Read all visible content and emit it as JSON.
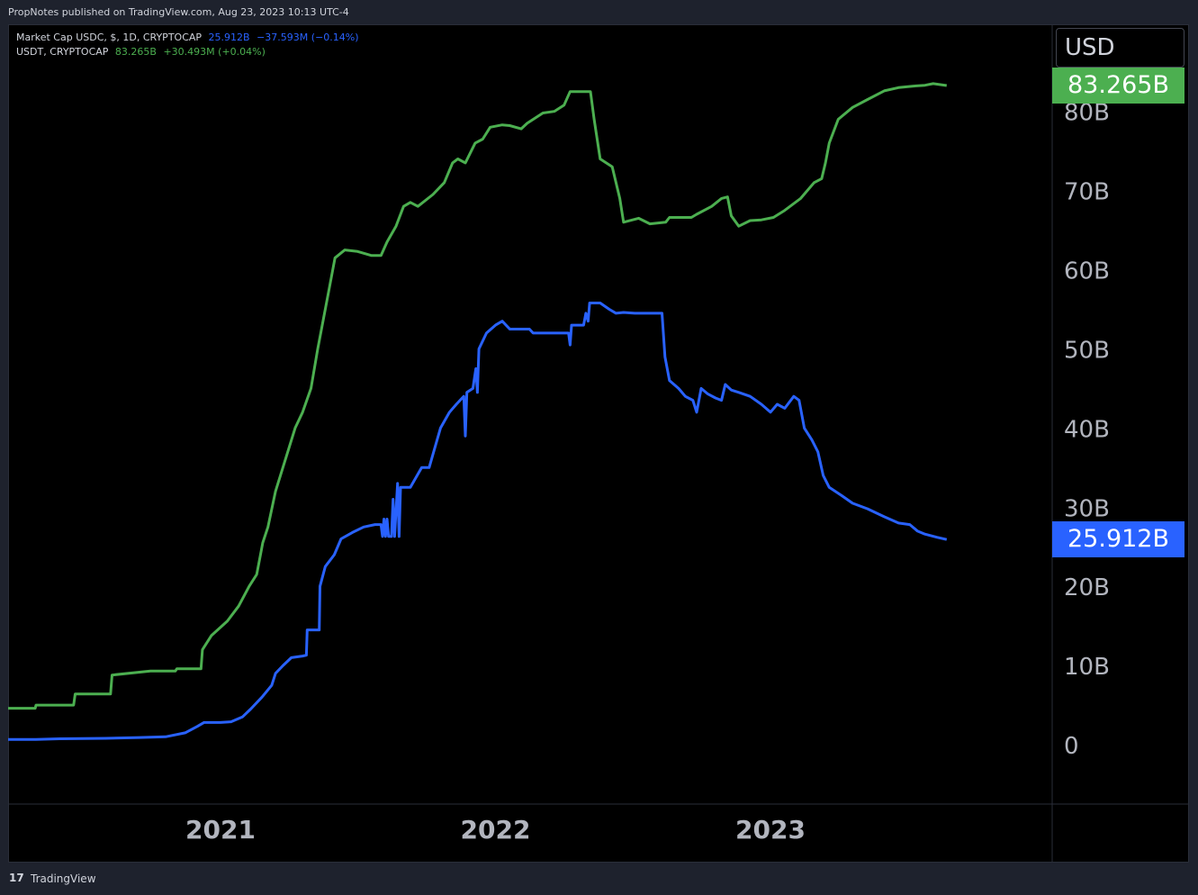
{
  "publisher_line": "PropNotes published on TradingView.com, Aug 23, 2023 10:13 UTC-4",
  "legend": {
    "usdc": {
      "label": "Market Cap USDC, $, 1D, CRYPTOCAP",
      "value": "25.912B",
      "change": "−37.593M (−0.14%)"
    },
    "usdt": {
      "label": "USDT, CRYPTOCAP",
      "value": "83.265B",
      "change": "+30.493M (+0.04%)"
    }
  },
  "currency": "USD",
  "price_tags": {
    "usdt": "83.265B",
    "usdc": "25.912B"
  },
  "branding": {
    "logo_glyph": "17",
    "name": "TradingView"
  },
  "colors": {
    "usdt": "#4caf50",
    "usdc": "#2962ff",
    "background": "#000000",
    "axis_text": "#b2b5be"
  },
  "chart_data": {
    "type": "line",
    "title": "",
    "xlabel": "",
    "ylabel": "",
    "x_tick_labels": [
      "2021",
      "2022",
      "2023"
    ],
    "y_tick_labels": [
      "0",
      "10B",
      "20B",
      "30B",
      "40B",
      "50B",
      "60B",
      "70B",
      "80B"
    ],
    "y_ticks": [
      0,
      10,
      20,
      30,
      40,
      50,
      60,
      70,
      80
    ],
    "ylim": [
      -7.5,
      91
    ],
    "xlim": [
      "2020-03-25",
      "2024-01-10"
    ],
    "grid": false,
    "series": [
      {
        "name": "USDT",
        "color": "#4caf50",
        "points": [
          [
            "2020-03-25",
            4.6
          ],
          [
            "2020-04-30",
            4.6
          ],
          [
            "2020-05-01",
            5.0
          ],
          [
            "2020-06-20",
            5.0
          ],
          [
            "2020-06-22",
            6.4
          ],
          [
            "2020-08-08",
            6.4
          ],
          [
            "2020-08-10",
            8.8
          ],
          [
            "2020-09-30",
            9.3
          ],
          [
            "2020-11-02",
            9.3
          ],
          [
            "2020-11-04",
            9.6
          ],
          [
            "2020-12-06",
            9.6
          ],
          [
            "2020-12-08",
            12.0
          ],
          [
            "2020-12-20",
            13.8
          ],
          [
            "2021-01-10",
            15.6
          ],
          [
            "2021-01-25",
            17.5
          ],
          [
            "2021-02-08",
            20.0
          ],
          [
            "2021-02-18",
            21.5
          ],
          [
            "2021-02-23",
            24.0
          ],
          [
            "2021-02-26",
            25.5
          ],
          [
            "2021-03-05",
            27.5
          ],
          [
            "2021-03-15",
            32.0
          ],
          [
            "2021-03-28",
            36.0
          ],
          [
            "2021-04-10",
            40.0
          ],
          [
            "2021-04-20",
            42.0
          ],
          [
            "2021-05-01",
            45.0
          ],
          [
            "2021-05-10",
            50.0
          ],
          [
            "2021-05-18",
            54.0
          ],
          [
            "2021-05-26",
            58.0
          ],
          [
            "2021-06-02",
            61.5
          ],
          [
            "2021-06-15",
            62.5
          ],
          [
            "2021-07-02",
            62.3
          ],
          [
            "2021-07-20",
            61.8
          ],
          [
            "2021-08-02",
            61.8
          ],
          [
            "2021-08-10",
            63.5
          ],
          [
            "2021-08-22",
            65.5
          ],
          [
            "2021-09-01",
            68.0
          ],
          [
            "2021-09-10",
            68.5
          ],
          [
            "2021-09-20",
            68.0
          ],
          [
            "2021-10-10",
            69.5
          ],
          [
            "2021-10-25",
            71.0
          ],
          [
            "2021-11-05",
            73.5
          ],
          [
            "2021-11-12",
            74.0
          ],
          [
            "2021-11-22",
            73.5
          ],
          [
            "2021-12-05",
            76.0
          ],
          [
            "2021-12-15",
            76.5
          ],
          [
            "2021-12-25",
            78.0
          ],
          [
            "2022-01-10",
            78.3
          ],
          [
            "2022-01-20",
            78.2
          ],
          [
            "2022-02-04",
            77.8
          ],
          [
            "2022-02-12",
            78.5
          ],
          [
            "2022-03-05",
            79.8
          ],
          [
            "2022-03-20",
            80.0
          ],
          [
            "2022-04-02",
            80.8
          ],
          [
            "2022-04-10",
            82.5
          ],
          [
            "2022-05-07",
            82.5
          ],
          [
            "2022-05-12",
            79.0
          ],
          [
            "2022-05-20",
            74.0
          ],
          [
            "2022-06-05",
            73.0
          ],
          [
            "2022-06-15",
            69.0
          ],
          [
            "2022-06-20",
            66.0
          ],
          [
            "2022-07-10",
            66.5
          ],
          [
            "2022-07-25",
            65.8
          ],
          [
            "2022-08-15",
            66.0
          ],
          [
            "2022-08-20",
            66.6
          ],
          [
            "2022-09-18",
            66.6
          ],
          [
            "2022-09-25",
            67.0
          ],
          [
            "2022-10-15",
            68.0
          ],
          [
            "2022-10-28",
            69.0
          ],
          [
            "2022-11-05",
            69.2
          ],
          [
            "2022-11-10",
            66.8
          ],
          [
            "2022-11-20",
            65.5
          ],
          [
            "2022-12-05",
            66.2
          ],
          [
            "2022-12-20",
            66.3
          ],
          [
            "2023-01-05",
            66.6
          ],
          [
            "2023-01-20",
            67.5
          ],
          [
            "2023-02-10",
            69.0
          ],
          [
            "2023-02-28",
            71.0
          ],
          [
            "2023-03-10",
            71.5
          ],
          [
            "2023-03-15",
            73.5
          ],
          [
            "2023-03-20",
            76.0
          ],
          [
            "2023-04-01",
            79.0
          ],
          [
            "2023-04-20",
            80.5
          ],
          [
            "2023-05-10",
            81.5
          ],
          [
            "2023-06-01",
            82.6
          ],
          [
            "2023-06-20",
            83.0
          ],
          [
            "2023-07-10",
            83.2
          ],
          [
            "2023-07-25",
            83.3
          ],
          [
            "2023-08-05",
            83.5
          ],
          [
            "2023-08-23",
            83.265
          ]
        ]
      },
      {
        "name": "USDC",
        "color": "#2962ff",
        "points": [
          [
            "2020-03-25",
            0.65
          ],
          [
            "2020-05-01",
            0.65
          ],
          [
            "2020-06-01",
            0.75
          ],
          [
            "2020-08-01",
            0.8
          ],
          [
            "2020-09-15",
            0.9
          ],
          [
            "2020-10-20",
            1.0
          ],
          [
            "2020-11-15",
            1.5
          ],
          [
            "2020-12-01",
            2.3
          ],
          [
            "2020-12-10",
            2.8
          ],
          [
            "2021-01-01",
            2.8
          ],
          [
            "2021-01-15",
            2.9
          ],
          [
            "2021-01-30",
            3.5
          ],
          [
            "2021-02-10",
            4.5
          ],
          [
            "2021-02-25",
            6.0
          ],
          [
            "2021-03-10",
            7.5
          ],
          [
            "2021-03-15",
            9.0
          ],
          [
            "2021-03-25",
            10.0
          ],
          [
            "2021-04-05",
            11.0
          ],
          [
            "2021-04-20",
            11.2
          ],
          [
            "2021-04-25",
            11.3
          ],
          [
            "2021-04-26",
            14.5
          ],
          [
            "2021-05-12",
            14.5
          ],
          [
            "2021-05-13",
            20.0
          ],
          [
            "2021-05-20",
            22.5
          ],
          [
            "2021-06-01",
            24.0
          ],
          [
            "2021-06-10",
            26.0
          ],
          [
            "2021-06-25",
            26.8
          ],
          [
            "2021-07-10",
            27.5
          ],
          [
            "2021-07-25",
            27.8
          ],
          [
            "2021-08-02",
            27.8
          ],
          [
            "2021-08-04",
            26.3
          ],
          [
            "2021-08-06",
            28.5
          ],
          [
            "2021-08-08",
            26.3
          ],
          [
            "2021-08-10",
            28.5
          ],
          [
            "2021-08-12",
            26.3
          ],
          [
            "2021-08-16",
            26.3
          ],
          [
            "2021-08-18",
            31.0
          ],
          [
            "2021-08-20",
            26.3
          ],
          [
            "2021-08-24",
            33.0
          ],
          [
            "2021-08-26",
            26.3
          ],
          [
            "2021-08-28",
            32.5
          ],
          [
            "2021-09-10",
            32.5
          ],
          [
            "2021-09-25",
            35.0
          ],
          [
            "2021-10-05",
            35.0
          ],
          [
            "2021-10-20",
            40.0
          ],
          [
            "2021-11-01",
            42.0
          ],
          [
            "2021-11-10",
            43.0
          ],
          [
            "2021-11-20",
            44.0
          ],
          [
            "2021-11-22",
            39.0
          ],
          [
            "2021-11-24",
            44.5
          ],
          [
            "2021-12-02",
            45.0
          ],
          [
            "2021-12-06",
            47.5
          ],
          [
            "2021-12-08",
            44.5
          ],
          [
            "2021-12-10",
            50.0
          ],
          [
            "2021-12-20",
            52.0
          ],
          [
            "2022-01-01",
            53.0
          ],
          [
            "2022-01-10",
            53.5
          ],
          [
            "2022-01-20",
            52.5
          ],
          [
            "2022-02-15",
            52.5
          ],
          [
            "2022-02-20",
            52.0
          ],
          [
            "2022-03-15",
            52.0
          ],
          [
            "2022-03-25",
            52.0
          ],
          [
            "2022-04-08",
            52.0
          ],
          [
            "2022-04-10",
            50.5
          ],
          [
            "2022-04-12",
            53.0
          ],
          [
            "2022-04-28",
            53.0
          ],
          [
            "2022-05-01",
            54.5
          ],
          [
            "2022-05-04",
            53.5
          ],
          [
            "2022-05-06",
            55.8
          ],
          [
            "2022-05-20",
            55.8
          ],
          [
            "2022-06-01",
            55.0
          ],
          [
            "2022-06-10",
            54.5
          ],
          [
            "2022-06-20",
            54.6
          ],
          [
            "2022-07-05",
            54.5
          ],
          [
            "2022-08-10",
            54.5
          ],
          [
            "2022-08-14",
            49.0
          ],
          [
            "2022-08-20",
            46.0
          ],
          [
            "2022-09-01",
            45.0
          ],
          [
            "2022-09-10",
            44.0
          ],
          [
            "2022-09-20",
            43.5
          ],
          [
            "2022-09-25",
            42.0
          ],
          [
            "2022-10-01",
            45.0
          ],
          [
            "2022-10-10",
            44.3
          ],
          [
            "2022-10-20",
            43.8
          ],
          [
            "2022-10-28",
            43.5
          ],
          [
            "2022-11-02",
            45.5
          ],
          [
            "2022-11-10",
            44.8
          ],
          [
            "2022-11-20",
            44.5
          ],
          [
            "2022-12-05",
            44.0
          ],
          [
            "2022-12-20",
            43.0
          ],
          [
            "2023-01-01",
            42.0
          ],
          [
            "2023-01-10",
            43.0
          ],
          [
            "2023-01-20",
            42.5
          ],
          [
            "2023-02-01",
            44.0
          ],
          [
            "2023-02-08",
            43.5
          ],
          [
            "2023-02-15",
            40.0
          ],
          [
            "2023-02-25",
            38.5
          ],
          [
            "2023-03-05",
            37.0
          ],
          [
            "2023-03-12",
            34.0
          ],
          [
            "2023-03-20",
            32.5
          ],
          [
            "2023-04-05",
            31.5
          ],
          [
            "2023-04-20",
            30.5
          ],
          [
            "2023-05-10",
            29.8
          ],
          [
            "2023-06-01",
            28.8
          ],
          [
            "2023-06-20",
            28.0
          ],
          [
            "2023-07-05",
            27.8
          ],
          [
            "2023-07-15",
            27.0
          ],
          [
            "2023-07-25",
            26.6
          ],
          [
            "2023-08-10",
            26.2
          ],
          [
            "2023-08-23",
            25.912
          ]
        ]
      }
    ]
  }
}
